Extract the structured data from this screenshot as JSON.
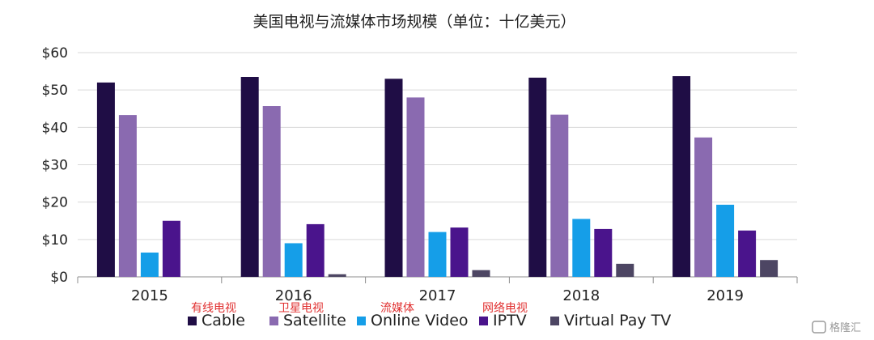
{
  "chart_data": {
    "type": "bar",
    "title": "美国电视与流媒体市场规模（单位：十亿美元）",
    "categories": [
      "2015",
      "2016",
      "2017",
      "2018",
      "2019"
    ],
    "yticks": [
      "$0",
      "$10",
      "$20",
      "$30",
      "$40",
      "$50",
      "$60"
    ],
    "ylim": [
      0,
      60
    ],
    "grid": true,
    "legend_position": "bottom",
    "series": [
      {
        "name": "Cable",
        "color": "#1f0d45",
        "values": [
          52,
          53.5,
          53,
          53.3,
          53.7
        ]
      },
      {
        "name": "Satellite",
        "color": "#8a6ab0",
        "values": [
          43.3,
          45.7,
          48,
          43.4,
          37.3
        ]
      },
      {
        "name": "Online Video",
        "color": "#159ee8",
        "values": [
          6.5,
          9,
          12,
          15.5,
          19.3
        ]
      },
      {
        "name": "IPTV",
        "color": "#4a148c",
        "values": [
          15,
          14.1,
          13.2,
          12.8,
          12.4
        ]
      },
      {
        "name": "Virtual Pay TV",
        "color": "#4d4663",
        "values": [
          0,
          0.7,
          1.8,
          3.5,
          4.5
        ]
      }
    ],
    "annotations": [
      "有线电视",
      "卫星电视",
      "流媒体",
      "网络电视"
    ]
  },
  "watermark": {
    "text": "格隆汇"
  }
}
